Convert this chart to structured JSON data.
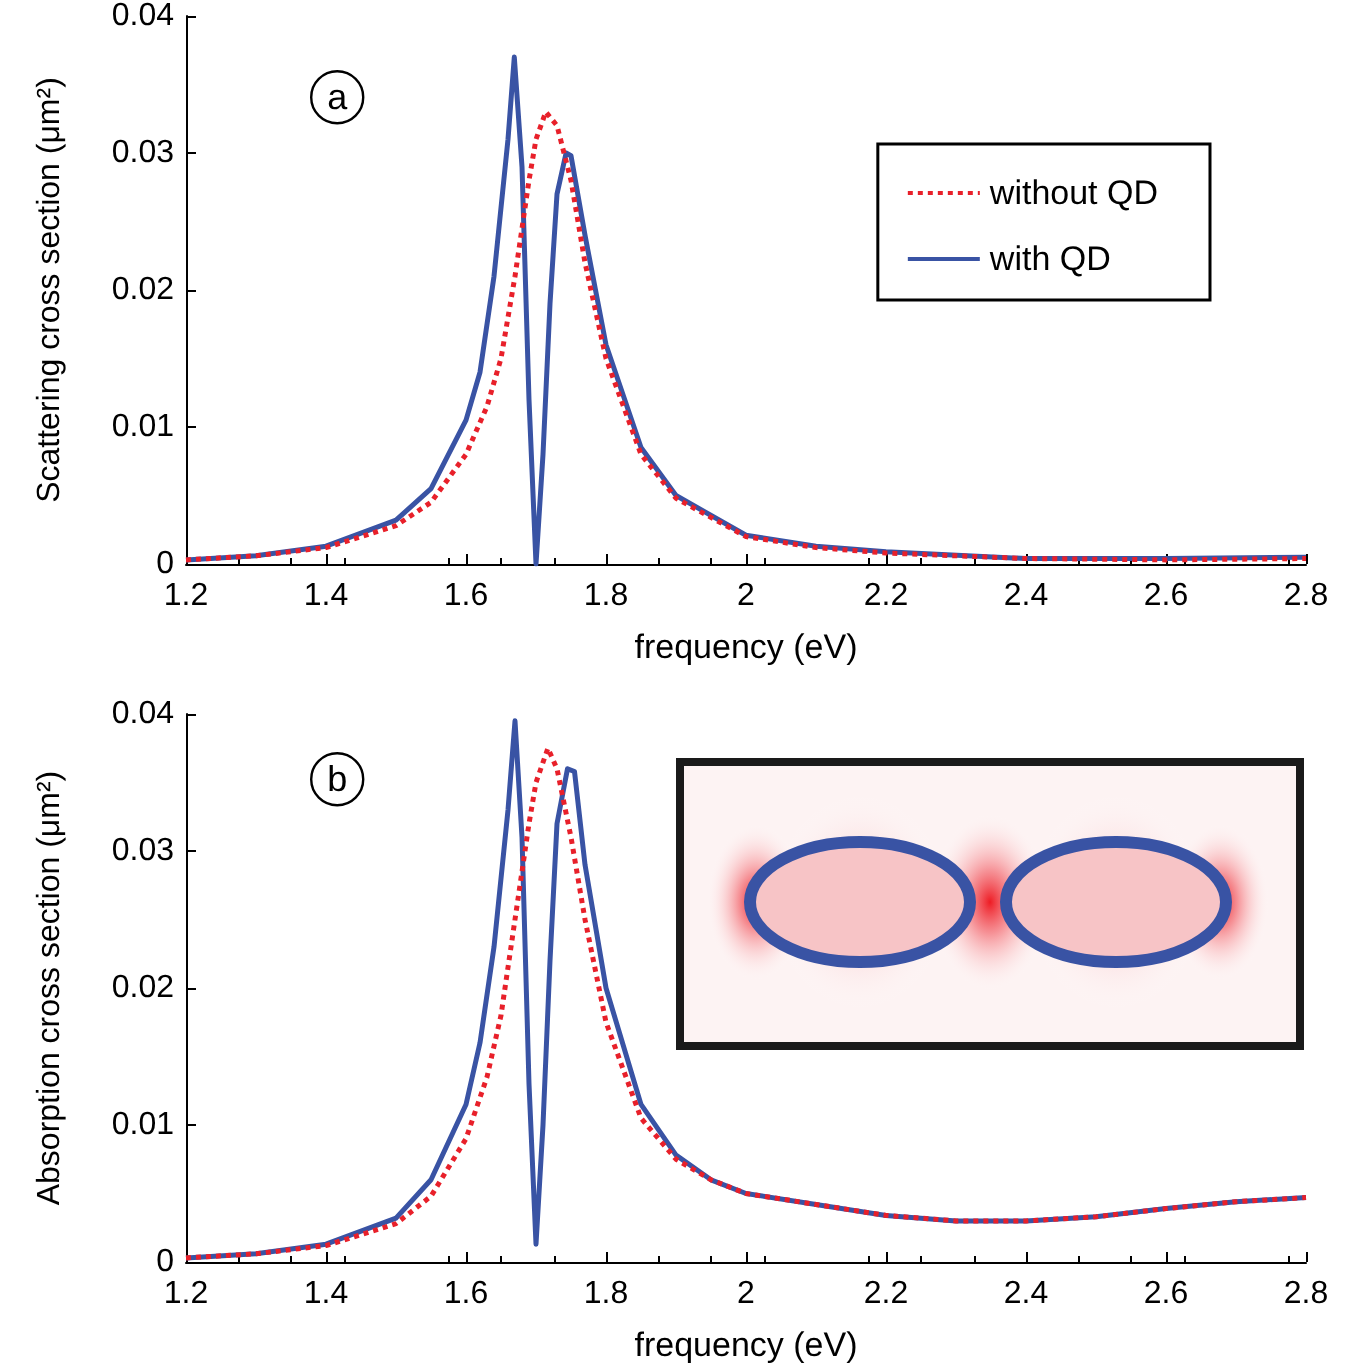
{
  "chart_data": [
    {
      "type": "line",
      "xlabel": "frequency (eV)",
      "ylabel": "Scattering cross section (μm²)",
      "annotations": [
        "a"
      ],
      "xlim": [
        1.2,
        2.8
      ],
      "xticks": [
        1.2,
        1.4,
        1.6,
        1.8,
        2,
        2.2,
        2.4,
        2.6,
        2.8
      ],
      "ylim": [
        0,
        0.04
      ],
      "yticks": [
        0,
        0.01,
        0.02,
        0.03,
        0.04
      ],
      "grid": false,
      "legend": "top right",
      "marker": "none",
      "line_style": "solid",
      "series": [
        {
          "name": "without QD",
          "color": "#e8202a",
          "line_style": "dotted",
          "x": [
            1.2,
            1.3,
            1.4,
            1.5,
            1.55,
            1.6,
            1.63,
            1.65,
            1.67,
            1.69,
            1.7,
            1.714,
            1.73,
            1.75,
            1.77,
            1.8,
            1.85,
            1.9,
            2.0,
            2.1,
            2.2,
            2.4,
            2.6,
            2.8
          ],
          "values": [
            0.0003,
            0.0006,
            0.0012,
            0.0028,
            0.0045,
            0.008,
            0.0115,
            0.015,
            0.021,
            0.028,
            0.031,
            0.033,
            0.032,
            0.028,
            0.022,
            0.015,
            0.008,
            0.0048,
            0.002,
            0.0012,
            0.0008,
            0.0004,
            0.0003,
            0.0004
          ]
        },
        {
          "name": "with QD",
          "color": "#3953a4",
          "x": [
            1.2,
            1.3,
            1.4,
            1.5,
            1.55,
            1.6,
            1.62,
            1.64,
            1.66,
            1.669,
            1.68,
            1.69,
            1.7,
            1.71,
            1.72,
            1.73,
            1.743,
            1.75,
            1.77,
            1.8,
            1.85,
            1.9,
            2.0,
            2.1,
            2.2,
            2.4,
            2.6,
            2.8
          ],
          "values": [
            0.0003,
            0.0006,
            0.0013,
            0.0032,
            0.0055,
            0.0105,
            0.014,
            0.021,
            0.031,
            0.037,
            0.029,
            0.012,
            0,
            0.008,
            0.019,
            0.027,
            0.03,
            0.0298,
            0.024,
            0.016,
            0.0085,
            0.005,
            0.0021,
            0.0013,
            0.0009,
            0.0004,
            0.0004,
            0.0005
          ]
        }
      ]
    },
    {
      "type": "line",
      "xlabel": "frequency (eV)",
      "ylabel": "Absorption cross section (μm²)",
      "annotations": [
        "b"
      ],
      "xlim": [
        1.2,
        2.8
      ],
      "xticks": [
        1.2,
        1.4,
        1.6,
        1.8,
        2,
        2.2,
        2.4,
        2.6,
        2.8
      ],
      "ylim": [
        0,
        0.04
      ],
      "yticks": [
        0,
        0.01,
        0.02,
        0.03,
        0.04
      ],
      "grid": false,
      "legend": false,
      "marker": "none",
      "line_style": "solid",
      "series": [
        {
          "color": "#e8202a",
          "line_style": "dotted",
          "x": [
            1.2,
            1.3,
            1.4,
            1.5,
            1.55,
            1.6,
            1.63,
            1.65,
            1.67,
            1.69,
            1.7,
            1.717,
            1.73,
            1.75,
            1.77,
            1.8,
            1.85,
            1.9,
            1.95,
            2.0,
            2.1,
            2.2,
            2.3,
            2.4,
            2.5,
            2.6,
            2.7,
            2.8
          ],
          "values": [
            0.0003,
            0.0006,
            0.0012,
            0.0028,
            0.0048,
            0.009,
            0.0135,
            0.018,
            0.025,
            0.032,
            0.035,
            0.0375,
            0.036,
            0.031,
            0.025,
            0.0175,
            0.0105,
            0.0075,
            0.006,
            0.005,
            0.0042,
            0.0034,
            0.003,
            0.003,
            0.0033,
            0.0039,
            0.0044,
            0.0047
          ]
        },
        {
          "color": "#3953a4",
          "x": [
            1.2,
            1.3,
            1.4,
            1.5,
            1.55,
            1.6,
            1.62,
            1.64,
            1.66,
            1.67,
            1.68,
            1.69,
            1.7,
            1.71,
            1.72,
            1.73,
            1.745,
            1.755,
            1.77,
            1.8,
            1.85,
            1.9,
            1.95,
            2.0,
            2.1,
            2.2,
            2.3,
            2.4,
            2.5,
            2.6,
            2.7,
            2.8
          ],
          "values": [
            0.0003,
            0.0006,
            0.0013,
            0.0032,
            0.006,
            0.0115,
            0.016,
            0.023,
            0.033,
            0.0395,
            0.031,
            0.013,
            0.0013,
            0.01,
            0.022,
            0.032,
            0.036,
            0.0358,
            0.029,
            0.02,
            0.0115,
            0.0078,
            0.006,
            0.005,
            0.0042,
            0.0034,
            0.003,
            0.003,
            0.0033,
            0.0039,
            0.0044,
            0.0047
          ]
        }
      ]
    }
  ]
}
